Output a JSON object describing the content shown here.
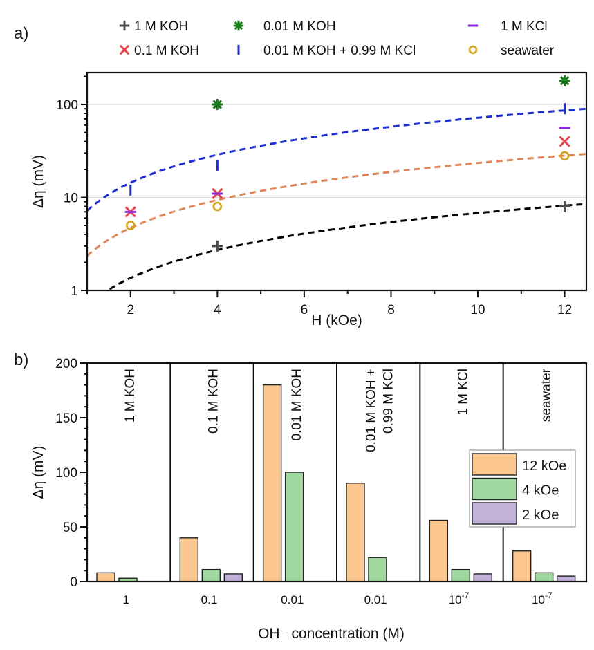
{
  "figure": {
    "panels": [
      "a)",
      "b)"
    ]
  },
  "chart_data": [
    {
      "panel": "a)",
      "type": "scatter",
      "title": "",
      "xlabel": "H (kOe)",
      "ylabel": "Δη (mV)",
      "xscale": "linear",
      "yscale": "log",
      "xlim": [
        1.0,
        12.5
      ],
      "ylim": [
        1,
        220
      ],
      "xticks": [
        2,
        4,
        6,
        8,
        10,
        12
      ],
      "xtick_labels": [
        "2",
        "4",
        "6",
        "8",
        "10",
        "12"
      ],
      "yticks": [
        1,
        10,
        100
      ],
      "ytick_labels": [
        "1",
        "10",
        "100"
      ],
      "grid": "horizontal at major y ticks",
      "legend": {
        "placement": "top (above plot)",
        "columns": 3
      },
      "series": [
        {
          "name": "1 M KOH",
          "marker": "plus",
          "color": "#4d4d4d",
          "x": [
            4,
            12
          ],
          "y": [
            3,
            8
          ]
        },
        {
          "name": "0.1 M KOH",
          "marker": "cross",
          "color": "#e8434c",
          "x": [
            2,
            4,
            12
          ],
          "y": [
            7,
            11,
            40
          ]
        },
        {
          "name": "0.01 M KOH",
          "marker": "asterisk",
          "color": "#1a7a1a",
          "x": [
            4,
            12
          ],
          "y": [
            100,
            180
          ]
        },
        {
          "name": "0.01 M KOH + 0.99 M KCl",
          "marker": "vline",
          "color": "#1f2fd1",
          "x": [
            2,
            4,
            12
          ],
          "y": [
            12,
            22,
            90
          ]
        },
        {
          "name": "1 M KCl",
          "marker": "hline",
          "color": "#8a2be2",
          "x": [
            2,
            4,
            12
          ],
          "y": [
            7,
            11,
            56
          ]
        },
        {
          "name": "seawater",
          "marker": "circle",
          "color": "#d4a017",
          "x": [
            2,
            4,
            12
          ],
          "y": [
            5,
            8,
            28
          ]
        }
      ],
      "fit_lines": [
        {
          "name": "fit-blue",
          "style": "dashed",
          "color": "#1f2fd1",
          "form": "y = a*H",
          "a": 7.2
        },
        {
          "name": "fit-orange",
          "style": "dashed",
          "color": "#e0875a",
          "form": "y = a*H",
          "a": 2.35
        },
        {
          "name": "fit-black",
          "style": "dashed",
          "color": "#000000",
          "form": "y = a*H",
          "a": 0.68
        }
      ]
    },
    {
      "panel": "b)",
      "type": "bar",
      "title": "",
      "xlabel": "OH⁻ concentration (M)",
      "ylabel": "Δη (mV)",
      "ylim": [
        0,
        200
      ],
      "yticks": [
        0,
        50,
        100,
        150,
        200
      ],
      "ytick_labels": [
        "0",
        "50",
        "100",
        "150",
        "200"
      ],
      "categories": [
        "1",
        "0.1",
        "0.01",
        "0.01",
        "10^-7",
        "10^-7"
      ],
      "category_tick_labels": [
        {
          "base": "1",
          "sup": ""
        },
        {
          "base": "0.1",
          "sup": ""
        },
        {
          "base": "0.01",
          "sup": ""
        },
        {
          "base": "0.01",
          "sup": ""
        },
        {
          "base": "10",
          "sup": "-7"
        },
        {
          "base": "10",
          "sup": "-7"
        }
      ],
      "group_annotations": [
        [
          "1 M KOH"
        ],
        [
          "0.1 M KOH"
        ],
        [
          "0.01 M KOH"
        ],
        [
          "0.01 M KOH +",
          "0.99 M KCl"
        ],
        [
          "1 M KCl"
        ],
        [
          "seawater"
        ]
      ],
      "legend": {
        "placement": "right",
        "entries": [
          "12 kOe",
          "4 kOe",
          "2 kOe"
        ]
      },
      "series": [
        {
          "name": "12 kOe",
          "color": "#fcc890",
          "values": [
            8,
            40,
            180,
            90,
            56,
            28
          ]
        },
        {
          "name": "4 kOe",
          "color": "#9fd99f",
          "values": [
            3,
            11,
            100,
            22,
            11,
            8
          ]
        },
        {
          "name": "2 kOe",
          "color": "#c2b1d9",
          "values": [
            null,
            7,
            null,
            null,
            7,
            5
          ]
        }
      ]
    }
  ]
}
